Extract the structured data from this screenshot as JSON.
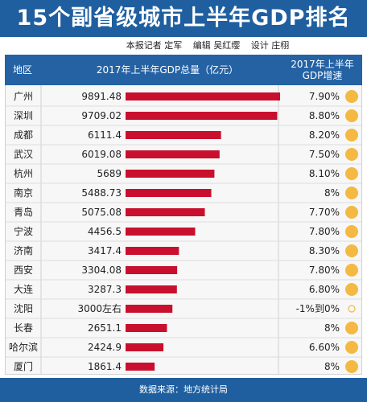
{
  "title": "15个副省级城市上半年GDP排名",
  "credits": {
    "reporter": "本报记者 定军",
    "editor": "编辑 吴红缨",
    "design": "设计 庄栩"
  },
  "header": {
    "region": "地区",
    "gdp": "2017年上半年GDP总量（亿元）",
    "growth_line1": "2017年上半年",
    "growth_line2": "GDP增速"
  },
  "footer": "数据来源：地方统计局",
  "colors": {
    "title_bar": "#1f5f9f",
    "header": "#2462a4",
    "bar": "#c8102e",
    "dot": "#f4b942"
  },
  "chart_data": {
    "type": "bar",
    "orientation": "horizontal",
    "categories": [
      "广州",
      "深圳",
      "成都",
      "武汉",
      "杭州",
      "南京",
      "青岛",
      "宁波",
      "济南",
      "西安",
      "大连",
      "沈阳",
      "长春",
      "哈尔滨",
      "厦门"
    ],
    "value_labels": [
      "9891.48",
      "9709.02",
      "6111.4",
      "6019.08",
      "5689",
      "5488.73",
      "5075.08",
      "4456.5",
      "3417.4",
      "3304.08",
      "3287.3",
      "3000左右",
      "2651.1",
      "2424.9",
      "1861.4"
    ],
    "values": [
      9891.48,
      9709.02,
      6111.4,
      6019.08,
      5689,
      5488.73,
      5075.08,
      4456.5,
      3417.4,
      3304.08,
      3287.3,
      3000,
      2651.1,
      2424.9,
      1861.4
    ],
    "growth_labels": [
      "7.90%",
      "8.80%",
      "8.20%",
      "7.50%",
      "8.10%",
      "8%",
      "7.70%",
      "7.80%",
      "8.30%",
      "7.80%",
      "6.80%",
      "-1%到0%",
      "8%",
      "6.60%",
      "8%"
    ],
    "growth_marker": [
      "filled",
      "filled",
      "filled",
      "filled",
      "filled",
      "filled",
      "filled",
      "filled",
      "filled",
      "filled",
      "filled",
      "hollow",
      "filled",
      "filled",
      "filled"
    ],
    "xlim": [
      0,
      10000
    ]
  }
}
